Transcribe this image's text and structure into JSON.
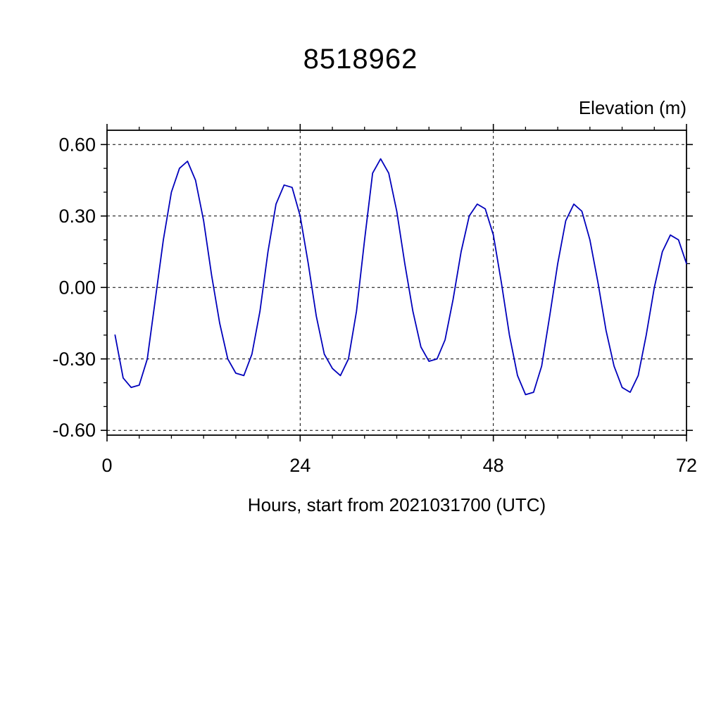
{
  "page": {
    "background": "#ffffff"
  },
  "chart_data": {
    "type": "line",
    "title": "8518962",
    "ylabel": "Elevation (m)",
    "xlabel": "Hours, start from 2021031700 (UTC)",
    "line_color": "#0000bb",
    "frame_color": "#000000",
    "grid_style": "dashed",
    "legend": "none",
    "xlim": [
      0,
      72
    ],
    "ylim": [
      -0.62,
      0.66
    ],
    "xticks": [
      0,
      24,
      48,
      72
    ],
    "xtick_labels": [
      "0",
      "24",
      "48",
      "72"
    ],
    "x_minor_interval": 4,
    "yticks": [
      -0.6,
      -0.3,
      0,
      0.3,
      0.6
    ],
    "ytick_labels": [
      "-0.60",
      "-0.30",
      "0.00",
      "0.30",
      "0.60"
    ],
    "y_minor_interval": 0.1,
    "grid_x": [
      24,
      48
    ],
    "grid_y": [
      -0.6,
      -0.3,
      0,
      0.3,
      0.6
    ],
    "series": [
      {
        "name": "elevation",
        "x": [
          1,
          2,
          3,
          4,
          5,
          6,
          7,
          8,
          9,
          10,
          11,
          12,
          13,
          14,
          15,
          16,
          17,
          18,
          19,
          20,
          21,
          22,
          23,
          24,
          25,
          26,
          27,
          28,
          29,
          30,
          31,
          32,
          33,
          34,
          35,
          36,
          37,
          38,
          39,
          40,
          41,
          42,
          43,
          44,
          45,
          46,
          47,
          48,
          49,
          50,
          51,
          52,
          53,
          54,
          55,
          56,
          57,
          58,
          59,
          60,
          61,
          62,
          63,
          64,
          65,
          66,
          67,
          68,
          69,
          70,
          71,
          72
        ],
        "y": [
          -0.2,
          -0.38,
          -0.42,
          -0.41,
          -0.3,
          -0.05,
          0.2,
          0.4,
          0.5,
          0.53,
          0.45,
          0.28,
          0.05,
          -0.15,
          -0.3,
          -0.36,
          -0.37,
          -0.28,
          -0.1,
          0.15,
          0.35,
          0.43,
          0.42,
          0.3,
          0.1,
          -0.12,
          -0.28,
          -0.34,
          -0.37,
          -0.3,
          -0.1,
          0.2,
          0.48,
          0.54,
          0.48,
          0.32,
          0.1,
          -0.1,
          -0.25,
          -0.31,
          -0.3,
          -0.22,
          -0.05,
          0.15,
          0.3,
          0.35,
          0.33,
          0.22,
          0.02,
          -0.2,
          -0.37,
          -0.45,
          -0.44,
          -0.33,
          -0.12,
          0.1,
          0.28,
          0.35,
          0.32,
          0.2,
          0.02,
          -0.18,
          -0.33,
          -0.42,
          -0.44,
          -0.37,
          -0.2,
          0.0,
          0.15,
          0.22,
          0.2,
          0.1
        ]
      }
    ]
  }
}
